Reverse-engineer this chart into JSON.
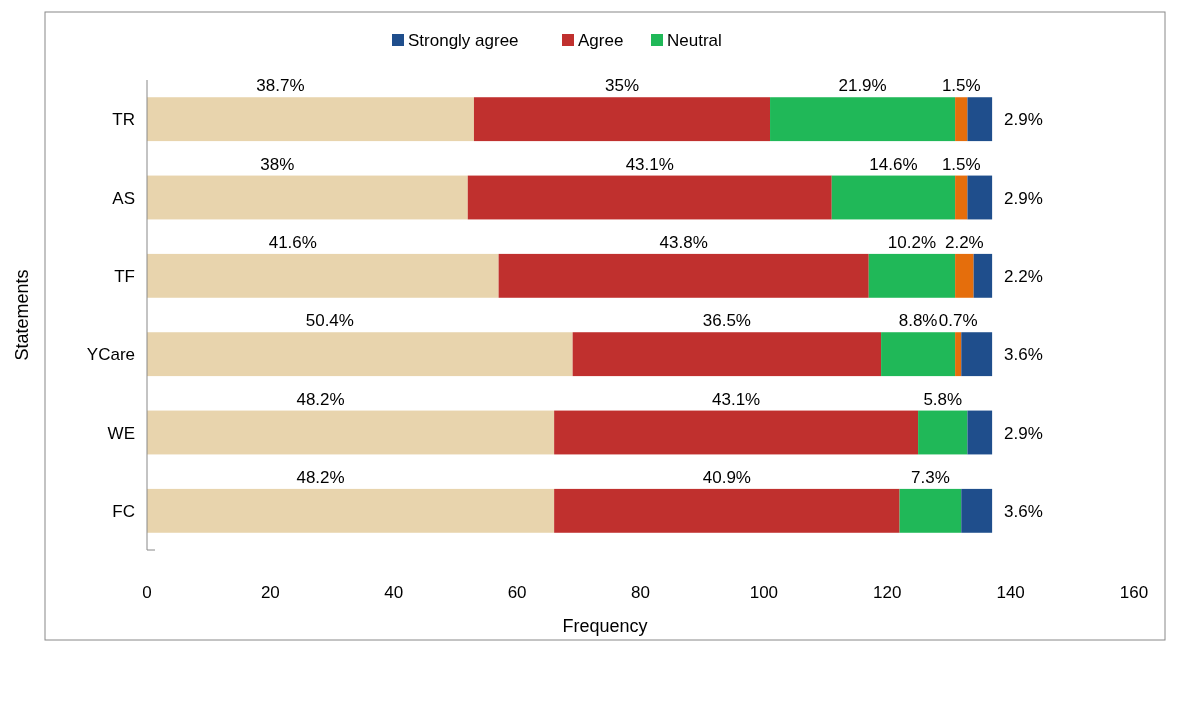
{
  "chart_data": {
    "type": "bar",
    "orientation": "horizontal",
    "stacked": true,
    "xlabel": "Frequency",
    "ylabel": "Statements",
    "categories": [
      "TR",
      "AS",
      "TF",
      "YCare",
      "WE",
      "FC"
    ],
    "series": [
      {
        "color": "#e8d4ad",
        "values": [
          53,
          52,
          57,
          69,
          66,
          66
        ]
      },
      {
        "name": "Agree",
        "color": "#c0302e",
        "values": [
          48,
          59,
          60,
          50,
          59,
          56
        ]
      },
      {
        "name": "Neutral",
        "color": "#20b858",
        "values": [
          30,
          20,
          14,
          12,
          8,
          10
        ]
      },
      {
        "color": "#e56e0c",
        "values": [
          2,
          2,
          3,
          1,
          0,
          0
        ]
      },
      {
        "name": "Strongly agree",
        "color": "#1f4e8c",
        "values": [
          4,
          4,
          3,
          5,
          4,
          5
        ]
      }
    ],
    "annotations": [
      "38.7%",
      "35%",
      "21.9%",
      "1.5%",
      "2.9%",
      "38%",
      "43.1%",
      "14.6%",
      "1.5%",
      "2.9%",
      "41.6%",
      "43.8%",
      "10.2%",
      "2.2%",
      "2.2%",
      "50.4%",
      "36.5%",
      "8.8%",
      "0.7%",
      "3.6%",
      "48.2%",
      "43.1%",
      "5.8%",
      "2.9%",
      "48.2%",
      "40.9%",
      "7.3%",
      "3.6%"
    ],
    "xlim": [
      0,
      160
    ],
    "xticks": [
      0,
      20,
      40,
      60,
      80,
      100,
      120,
      140,
      160
    ],
    "grid": false,
    "legend": "top"
  }
}
